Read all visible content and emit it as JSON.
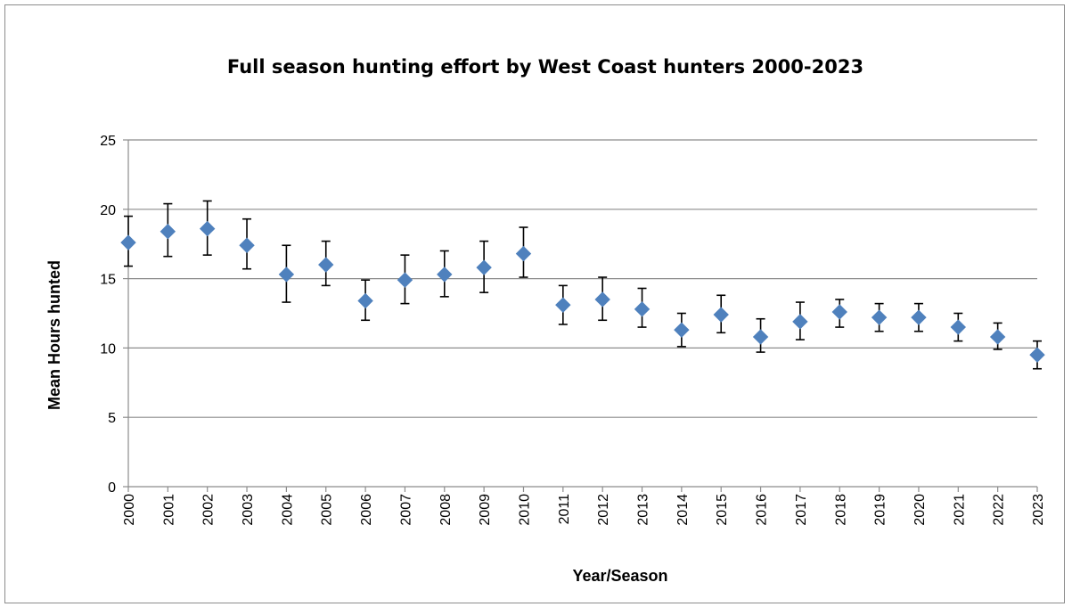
{
  "chart_data": {
    "type": "scatter",
    "title": "Full season hunting effort by West Coast hunters 2000-2023",
    "xlabel": "Year/Season",
    "ylabel": "Mean Hours hunted",
    "ylim": [
      0,
      25
    ],
    "yticks": [
      0,
      5,
      10,
      15,
      20,
      25
    ],
    "grid": true,
    "legend": "none",
    "marker_color": "#4f81bd",
    "categories": [
      "2000",
      "2001",
      "2002",
      "2003",
      "2004",
      "2005",
      "2006",
      "2007",
      "2008",
      "2009",
      "2010",
      "2011",
      "2012",
      "2013",
      "2014",
      "2015",
      "2016",
      "2017",
      "2018",
      "2019",
      "2020",
      "2021",
      "2022",
      "2023"
    ],
    "values": [
      17.6,
      18.4,
      18.6,
      17.4,
      15.3,
      16.0,
      13.4,
      14.9,
      15.3,
      15.8,
      16.8,
      13.1,
      13.5,
      12.8,
      11.3,
      12.4,
      10.8,
      11.9,
      12.6,
      12.2,
      12.2,
      11.5,
      10.8,
      9.5
    ],
    "error_low": [
      15.9,
      16.6,
      16.7,
      15.7,
      13.3,
      14.5,
      12.0,
      13.2,
      13.7,
      14.0,
      15.1,
      11.7,
      12.0,
      11.5,
      10.1,
      11.1,
      9.7,
      10.6,
      11.5,
      11.2,
      11.2,
      10.5,
      9.9,
      8.5
    ],
    "error_high": [
      19.5,
      20.4,
      20.6,
      19.3,
      17.4,
      17.7,
      14.9,
      16.7,
      17.0,
      17.7,
      18.7,
      14.5,
      15.1,
      14.3,
      12.5,
      13.8,
      12.1,
      13.3,
      13.5,
      13.2,
      13.2,
      12.5,
      11.8,
      10.5
    ]
  }
}
